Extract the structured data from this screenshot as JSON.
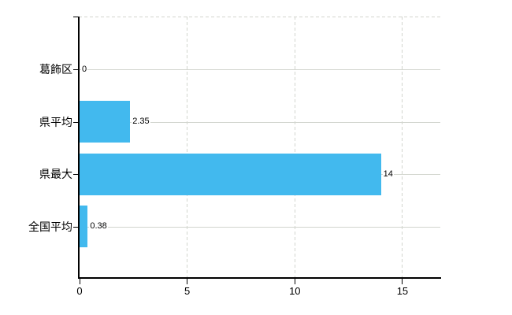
{
  "chart_data": {
    "type": "bar",
    "orientation": "horizontal",
    "title": "",
    "xlabel": "",
    "ylabel": "",
    "categories": [
      "葛飾区",
      "県平均",
      "県最大",
      "全国平均"
    ],
    "values": [
      0,
      2.35,
      14,
      0.38
    ],
    "data_labels": [
      "0",
      "2.35",
      "14",
      "0.38"
    ],
    "x_ticks": [
      0,
      5,
      10,
      15
    ],
    "x_tick_labels": [
      "0",
      "5",
      "10",
      "15"
    ],
    "xlim": [
      0,
      16.8
    ],
    "grid": "on",
    "legend": "none",
    "colors": {
      "bar": "#42b9ee",
      "grid": "#d2d5ce",
      "axis": "#000000",
      "text": "#000000",
      "background": "#ffffff"
    }
  }
}
